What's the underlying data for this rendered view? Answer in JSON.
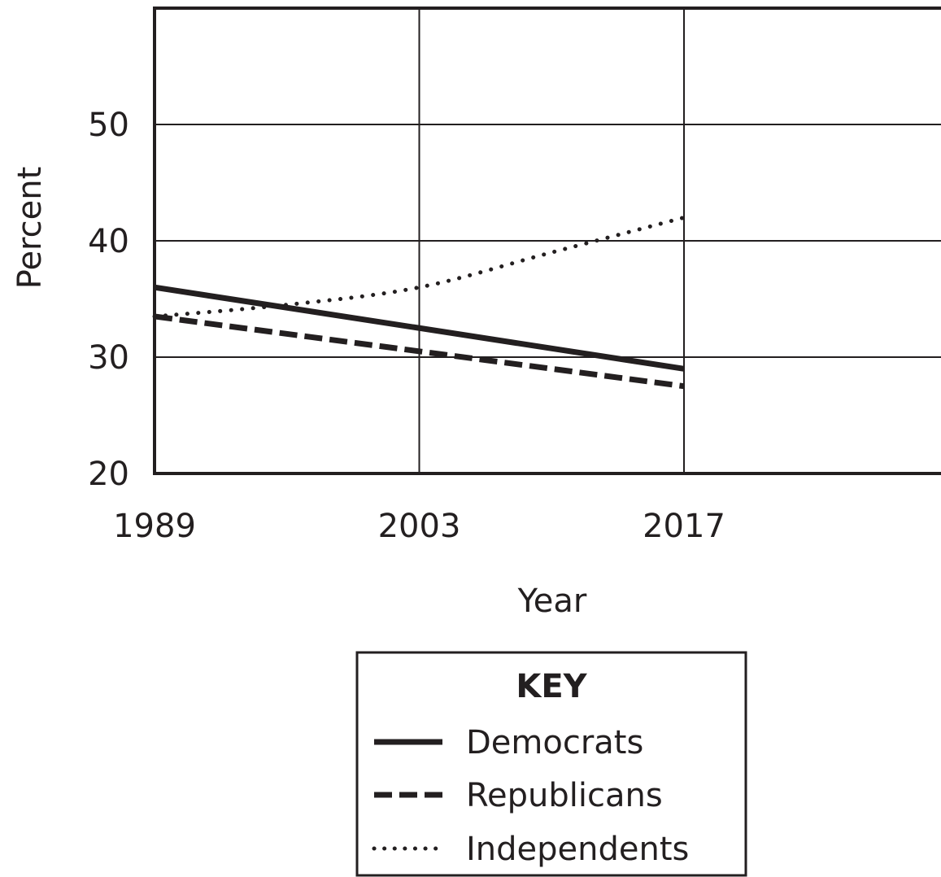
{
  "chart_data": {
    "type": "line",
    "title": "",
    "xlabel": "Year",
    "ylabel": "Percent",
    "x_ticks": [
      "1989",
      "2003",
      "2017"
    ],
    "y_ticks": [
      "20",
      "30",
      "40",
      "50"
    ],
    "xlim": [
      1989,
      2031
    ],
    "ylim": [
      20,
      60
    ],
    "grid": true,
    "legend_position": "bottom-center",
    "legend_title": "KEY",
    "colors": {
      "ink": "#231f20",
      "background": "#ffffff"
    },
    "series": [
      {
        "name": "Democrats",
        "style": "solid",
        "x": [
          1989,
          2017
        ],
        "y": [
          36,
          29
        ]
      },
      {
        "name": "Republicans",
        "style": "dashed",
        "x": [
          1989,
          2017
        ],
        "y": [
          33.5,
          27.5
        ]
      },
      {
        "name": "Independents",
        "style": "dotted",
        "x": [
          1989,
          1996,
          2003,
          2010,
          2017
        ],
        "y": [
          33.5,
          34.5,
          36,
          39,
          42
        ]
      }
    ]
  }
}
